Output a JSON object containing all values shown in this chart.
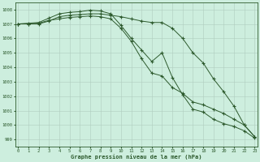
{
  "x": [
    0,
    1,
    2,
    3,
    4,
    5,
    6,
    7,
    8,
    9,
    10,
    11,
    12,
    13,
    14,
    15,
    16,
    17,
    18,
    19,
    20,
    21,
    22,
    23
  ],
  "line1": [
    1007.0,
    1007.0,
    1007.0,
    1007.2,
    1007.5,
    1007.6,
    1007.65,
    1007.7,
    1007.7,
    1007.6,
    1007.5,
    1007.35,
    1007.2,
    1007.1,
    1007.1,
    1006.7,
    1006.0,
    1005.0,
    1004.3,
    1003.2,
    1002.3,
    1001.3,
    1000.0,
    999.2
  ],
  "line2": [
    1007.0,
    1007.05,
    1007.1,
    1007.4,
    1007.7,
    1007.8,
    1007.85,
    1007.95,
    1007.9,
    1007.7,
    1006.9,
    1006.0,
    1005.2,
    1004.4,
    1005.0,
    1003.3,
    1002.1,
    1001.1,
    1000.9,
    1000.4,
    1000.1,
    999.9,
    999.6,
    999.1
  ],
  "line3": [
    1007.0,
    1007.0,
    1007.05,
    1007.25,
    1007.35,
    1007.45,
    1007.5,
    1007.55,
    1007.5,
    1007.35,
    1006.7,
    1005.8,
    1004.6,
    1003.6,
    1003.4,
    1002.6,
    1002.2,
    1001.6,
    1001.4,
    1001.1,
    1000.8,
    1000.4,
    1000.0,
    999.2
  ],
  "bg_color": "#cdeede",
  "grid_color": "#b0ccbe",
  "line_color": "#2d5a2d",
  "xlabel": "Graphe pression niveau de la mer (hPa)",
  "ylabel_ticks": [
    999,
    1000,
    1001,
    1002,
    1003,
    1004,
    1005,
    1006,
    1007,
    1008
  ],
  "ylim": [
    998.5,
    1008.5
  ],
  "xlim": [
    -0.3,
    23.3
  ]
}
